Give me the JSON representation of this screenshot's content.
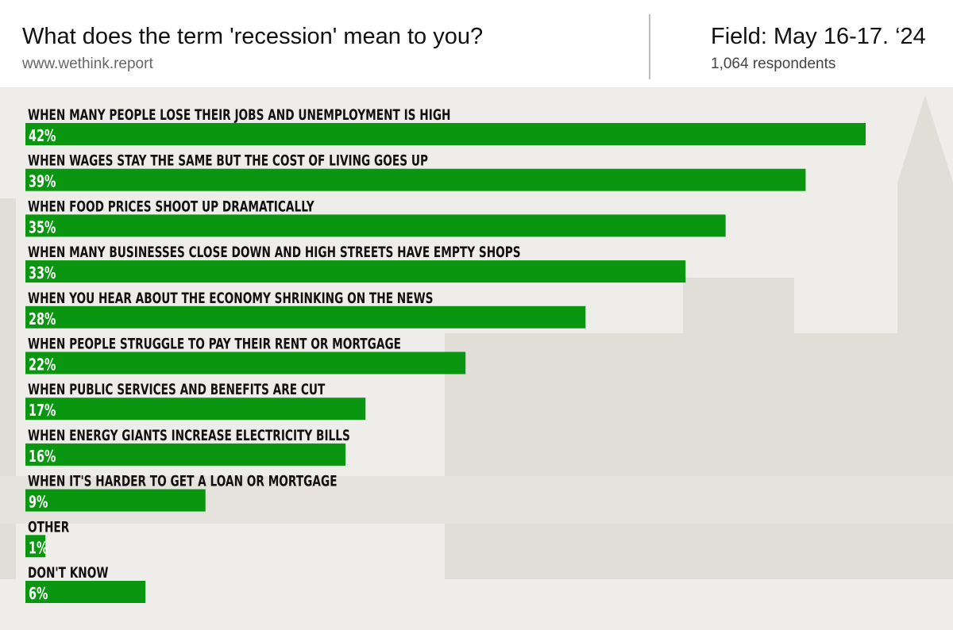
{
  "chart_data": {
    "type": "bar",
    "orientation": "horizontal",
    "title": "What does the term 'recession' mean to you?",
    "source": "www.wethink.report",
    "field": "Field: May 16-17. ‘24",
    "respondents": "1,064 respondents",
    "categories": [
      "WHEN MANY PEOPLE LOSE THEIR JOBS AND UNEMPLOYMENT IS HIGH",
      "WHEN WAGES STAY THE SAME BUT THE COST OF LIVING GOES UP",
      "WHEN FOOD PRICES SHOOT UP DRAMATICALLY",
      "WHEN MANY BUSINESSES CLOSE DOWN AND HIGH STREETS HAVE EMPTY SHOPS",
      "WHEN YOU HEAR ABOUT THE ECONOMY SHRINKING ON THE NEWS",
      "WHEN PEOPLE STRUGGLE TO PAY THEIR RENT OR MORTGAGE",
      "WHEN PUBLIC SERVICES AND BENEFITS ARE CUT",
      "WHEN ENERGY GIANTS INCREASE ELECTRICITY BILLS",
      "WHEN IT'S HARDER TO GET A LOAN OR MORTGAGE",
      "OTHER",
      "DON'T KNOW"
    ],
    "values": [
      42,
      39,
      35,
      33,
      28,
      22,
      17,
      16,
      9,
      1,
      6
    ],
    "value_labels": [
      "42%",
      "39%",
      "35%",
      "33%",
      "28%",
      "22%",
      "17%",
      "16%",
      "9%",
      "1%",
      "6%"
    ],
    "color": "#0b9611"
  }
}
